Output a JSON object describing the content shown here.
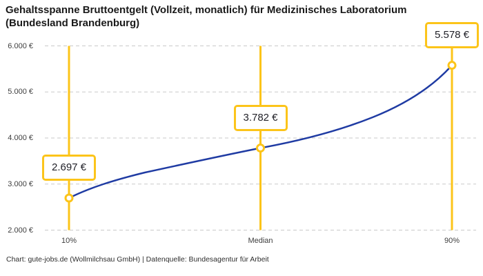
{
  "page": {
    "title_line1": "Gehaltsspanne Bruttoentgelt (Vollzeit, monatlich) für Medizinisches Laboratorium",
    "title_line2": "(Bundesland Brandenburg)",
    "footer": "Chart: gute-jobs.de (Wollmilchsau GmbH) | Datenquelle: Bundesagentur für Arbeit"
  },
  "colors": {
    "accent_yellow": "#fcc419",
    "line_blue": "#1f3ba3",
    "grid_gray": "#c9c9c9",
    "text_dark": "#1a1a1a"
  },
  "chart_data": {
    "type": "line",
    "title": "Gehaltsspanne Bruttoentgelt (Vollzeit, monatlich) für Medizinisches Laboratorium (Bundesland Brandenburg)",
    "x_categories": [
      "10%",
      "Median",
      "90%"
    ],
    "series": [
      {
        "name": "Bruttoentgelt (Vollzeit, monatlich)",
        "values": [
          2697,
          3782,
          5578
        ]
      }
    ],
    "points": [
      {
        "label": "10%",
        "value": 2697,
        "display": "2.697 €"
      },
      {
        "label": "Median",
        "value": 3782,
        "display": "3.782 €"
      },
      {
        "label": "90%",
        "value": 5578,
        "display": "5.578 €"
      }
    ],
    "unit": "€",
    "ylim": [
      2000,
      6000
    ],
    "y_ticks": [
      {
        "value": 6000,
        "label": "6.000 €"
      },
      {
        "value": 5000,
        "label": "5.000 €"
      },
      {
        "value": 4000,
        "label": "4.000 €"
      },
      {
        "value": 3000,
        "label": "3.000 €"
      },
      {
        "value": 2000,
        "label": "2.000 €"
      }
    ],
    "grid": "horizontal-dashed",
    "legend": "none",
    "source": "Chart: gute-jobs.de (Wollmilchsau GmbH) | Datenquelle: Bundesagentur für Arbeit"
  }
}
